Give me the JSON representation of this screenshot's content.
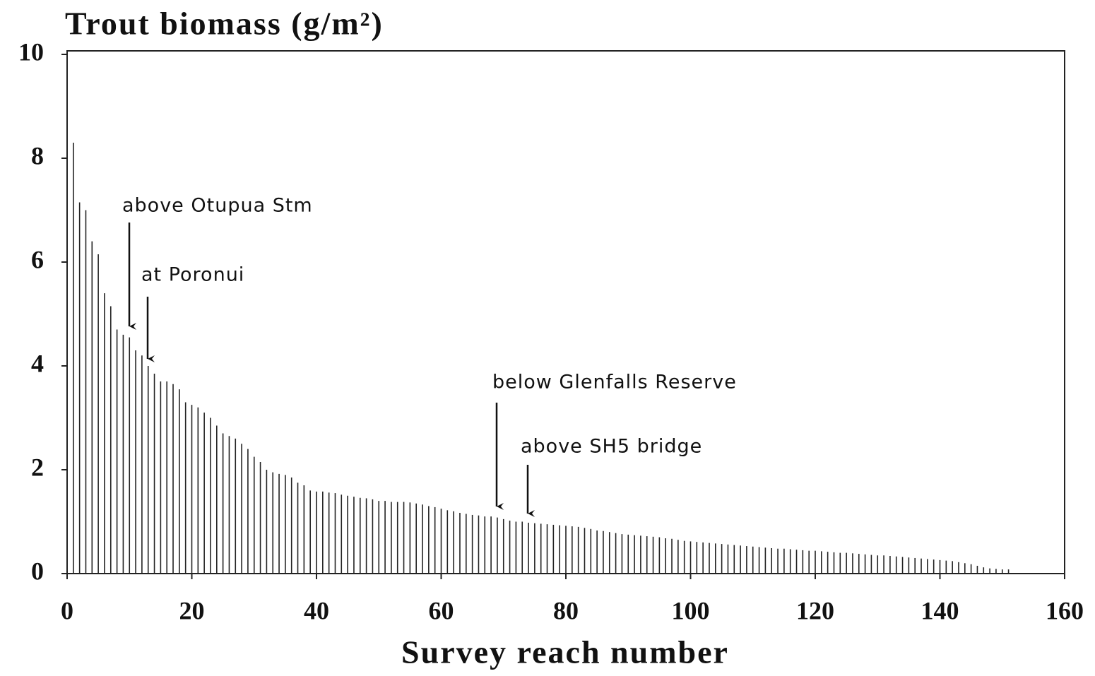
{
  "chart_data": {
    "type": "bar",
    "title": "Trout biomass (g/m²)",
    "x_label": "Survey reach number",
    "annotations": [
      "above Otupua Stm",
      "at Poronui",
      "below Glenfalls Reserve",
      "above SH5 bridge"
    ],
    "x": [
      1,
      2,
      3,
      4,
      5,
      6,
      7,
      8,
      9,
      10,
      11,
      12,
      13,
      14,
      15,
      16,
      17,
      18,
      19,
      20,
      21,
      22,
      23,
      24,
      25,
      26,
      27,
      28,
      29,
      30,
      31,
      32,
      33,
      34,
      35,
      36,
      37,
      38,
      39,
      40,
      41,
      42,
      43,
      44,
      45,
      46,
      47,
      48,
      49,
      50,
      51,
      52,
      53,
      54,
      55,
      56,
      57,
      58,
      59,
      60,
      61,
      62,
      63,
      64,
      65,
      66,
      67,
      68,
      69,
      70,
      71,
      72,
      73,
      74,
      75,
      76,
      77,
      78,
      79,
      80,
      81,
      82,
      83,
      84,
      85,
      86,
      87,
      88,
      89,
      90,
      91,
      92,
      93,
      94,
      95,
      96,
      97,
      98,
      99,
      100,
      101,
      102,
      103,
      104,
      105,
      106,
      107,
      108,
      109,
      110,
      111,
      112,
      113,
      114,
      115,
      116,
      117,
      118,
      119,
      120,
      121,
      122,
      123,
      124,
      125,
      126,
      127,
      128,
      129,
      130,
      131,
      132,
      133,
      134,
      135,
      136,
      137,
      138,
      139,
      140,
      141,
      142,
      143,
      144,
      145,
      146,
      147,
      148,
      149,
      150,
      151
    ],
    "values": [
      8.3,
      7.15,
      7.0,
      6.4,
      6.15,
      5.4,
      5.15,
      4.7,
      4.6,
      4.55,
      4.3,
      4.2,
      4.0,
      3.85,
      3.7,
      3.7,
      3.65,
      3.55,
      3.3,
      3.25,
      3.2,
      3.1,
      3.0,
      2.85,
      2.7,
      2.65,
      2.6,
      2.5,
      2.4,
      2.25,
      2.15,
      2.0,
      1.95,
      1.92,
      1.9,
      1.85,
      1.75,
      1.7,
      1.6,
      1.58,
      1.58,
      1.56,
      1.55,
      1.52,
      1.5,
      1.48,
      1.46,
      1.45,
      1.43,
      1.4,
      1.4,
      1.38,
      1.38,
      1.38,
      1.37,
      1.35,
      1.33,
      1.3,
      1.28,
      1.25,
      1.22,
      1.2,
      1.17,
      1.15,
      1.13,
      1.12,
      1.1,
      1.1,
      1.08,
      1.05,
      1.02,
      1.0,
      1.0,
      0.98,
      0.97,
      0.96,
      0.95,
      0.94,
      0.93,
      0.92,
      0.91,
      0.9,
      0.88,
      0.86,
      0.83,
      0.82,
      0.8,
      0.78,
      0.76,
      0.75,
      0.74,
      0.73,
      0.72,
      0.71,
      0.7,
      0.68,
      0.67,
      0.65,
      0.63,
      0.62,
      0.61,
      0.6,
      0.59,
      0.58,
      0.57,
      0.56,
      0.55,
      0.54,
      0.53,
      0.52,
      0.51,
      0.5,
      0.49,
      0.48,
      0.48,
      0.47,
      0.46,
      0.45,
      0.44,
      0.44,
      0.43,
      0.42,
      0.41,
      0.4,
      0.4,
      0.39,
      0.38,
      0.37,
      0.36,
      0.35,
      0.35,
      0.34,
      0.33,
      0.32,
      0.31,
      0.3,
      0.29,
      0.28,
      0.27,
      0.26,
      0.25,
      0.24,
      0.22,
      0.2,
      0.18,
      0.15,
      0.12,
      0.1,
      0.09,
      0.08,
      0.08
    ],
    "color": "#222222",
    "xlim": [
      0,
      160
    ],
    "xticks": [
      0,
      20,
      40,
      60,
      80,
      100,
      120,
      140,
      160
    ],
    "ylim": [
      0,
      10
    ],
    "yticks": [
      0,
      2,
      4,
      6,
      8,
      10
    ]
  }
}
